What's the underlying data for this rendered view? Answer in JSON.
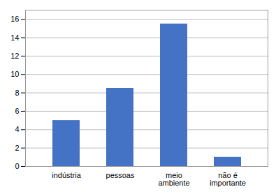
{
  "chart_data": {
    "type": "bar",
    "categories": [
      "indústria",
      "pessoas",
      "meio\nambiente",
      "não é\nimportante"
    ],
    "values": [
      5,
      8.5,
      15.5,
      1
    ],
    "color": "#4472C4",
    "ylim": [
      0,
      17
    ],
    "yticks": [
      0,
      2,
      4,
      6,
      8,
      10,
      12,
      14,
      16
    ],
    "grid": true
  }
}
